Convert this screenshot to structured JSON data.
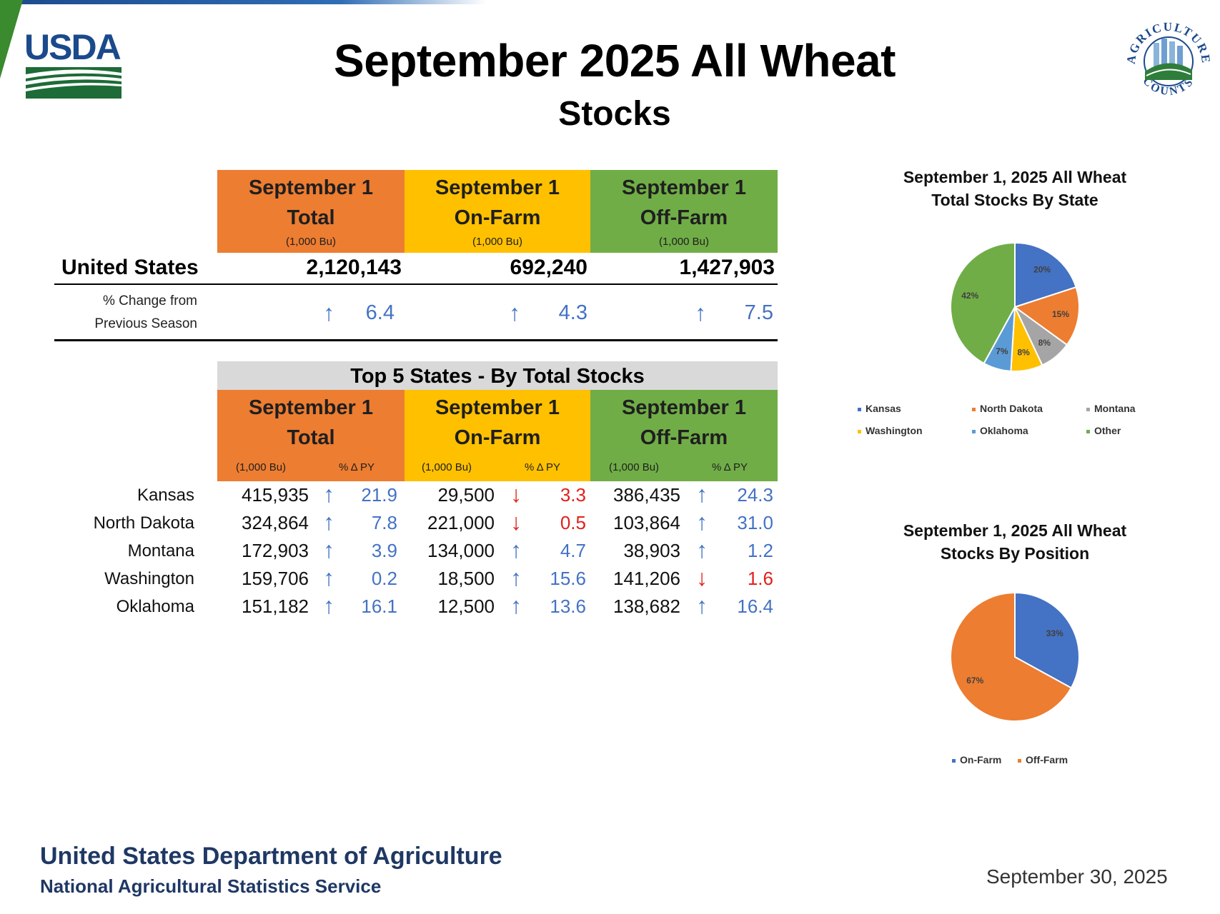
{
  "header": {
    "title": "September 2025 All Wheat",
    "subtitle": "Stocks",
    "logo_text": "USDA",
    "seal_text_top": "AGRICULTURE",
    "seal_text_bottom": "COUNTS"
  },
  "summary": {
    "columns": [
      {
        "line1": "September 1",
        "line2": "Total",
        "unit": "(1,000 Bu)",
        "color": "#ed7d31"
      },
      {
        "line1": "September 1",
        "line2": "On-Farm",
        "unit": "(1,000 Bu)",
        "color": "#ffc000"
      },
      {
        "line1": "September 1",
        "line2": "Off-Farm",
        "unit": "(1,000 Bu)",
        "color": "#70ad47"
      }
    ],
    "us_label": "United States",
    "us_values": [
      "2,120,143",
      "692,240",
      "1,427,903"
    ],
    "change_label_1": "% Change from",
    "change_label_2": "Previous Season",
    "changes": [
      {
        "dir": "up",
        "value": "6.4"
      },
      {
        "dir": "up",
        "value": "4.3"
      },
      {
        "dir": "up",
        "value": "7.5"
      }
    ]
  },
  "top5": {
    "title": "Top 5 States - By Total Stocks",
    "columns": [
      {
        "line1": "September 1",
        "line2": "Total",
        "unit": "(1,000 Bu)",
        "pct": "% Δ PY"
      },
      {
        "line1": "September 1",
        "line2": "On-Farm",
        "unit": "(1,000 Bu)",
        "pct": "% Δ PY"
      },
      {
        "line1": "September 1",
        "line2": "Off-Farm",
        "unit": "(1,000 Bu)",
        "pct": "% Δ PY"
      }
    ],
    "rows": [
      {
        "state": "Kansas",
        "cells": [
          {
            "value": "415,935",
            "dir": "up",
            "pct": "21.9"
          },
          {
            "value": "29,500",
            "dir": "down",
            "pct": "3.3"
          },
          {
            "value": "386,435",
            "dir": "up",
            "pct": "24.3"
          }
        ]
      },
      {
        "state": "North Dakota",
        "cells": [
          {
            "value": "324,864",
            "dir": "up",
            "pct": "7.8"
          },
          {
            "value": "221,000",
            "dir": "down",
            "pct": "0.5"
          },
          {
            "value": "103,864",
            "dir": "up",
            "pct": "31.0"
          }
        ]
      },
      {
        "state": "Montana",
        "cells": [
          {
            "value": "172,903",
            "dir": "up",
            "pct": "3.9"
          },
          {
            "value": "134,000",
            "dir": "up",
            "pct": "4.7"
          },
          {
            "value": "38,903",
            "dir": "up",
            "pct": "1.2"
          }
        ]
      },
      {
        "state": "Washington",
        "cells": [
          {
            "value": "159,706",
            "dir": "up",
            "pct": "0.2"
          },
          {
            "value": "18,500",
            "dir": "up",
            "pct": "15.6"
          },
          {
            "value": "141,206",
            "dir": "down",
            "pct": "1.6"
          }
        ]
      },
      {
        "state": "Oklahoma",
        "cells": [
          {
            "value": "151,182",
            "dir": "up",
            "pct": "16.1"
          },
          {
            "value": "12,500",
            "dir": "up",
            "pct": "13.6"
          },
          {
            "value": "138,682",
            "dir": "up",
            "pct": "16.4"
          }
        ]
      }
    ]
  },
  "chart_data": [
    {
      "type": "pie",
      "title": "September 1, 2025 All Wheat Total Stocks By State",
      "title_line1": "September 1, 2025 All Wheat",
      "title_line2": "Total Stocks By State",
      "legend_placement": "bottom",
      "slices": [
        {
          "label": "Kansas",
          "value": 20,
          "display": "20%",
          "color": "#4472c4"
        },
        {
          "label": "North Dakota",
          "value": 15,
          "display": "15%",
          "color": "#ed7d31"
        },
        {
          "label": "Montana",
          "value": 8,
          "display": "8%",
          "color": "#a5a5a5"
        },
        {
          "label": "Washington",
          "value": 8,
          "display": "8%",
          "color": "#ffc000"
        },
        {
          "label": "Oklahoma",
          "value": 7,
          "display": "7%",
          "color": "#5b9bd5"
        },
        {
          "label": "Other",
          "value": 42,
          "display": "42%",
          "color": "#70ad47"
        }
      ]
    },
    {
      "type": "pie",
      "title": "September 1, 2025 All Wheat Stocks By Position",
      "title_line1": "September 1, 2025 All Wheat",
      "title_line2": "Stocks By Position",
      "legend_placement": "bottom",
      "slices": [
        {
          "label": "On-Farm",
          "value": 33,
          "display": "33%",
          "color": "#4472c4"
        },
        {
          "label": "Off-Farm",
          "value": 67,
          "display": "67%",
          "color": "#ed7d31"
        }
      ]
    }
  ],
  "footer": {
    "dept": "United States Department of Agriculture",
    "agency": "National Agricultural Statistics Service",
    "date": "September 30, 2025"
  },
  "colors": {
    "up_arrow": "#4472c4",
    "down_arrow": "#e0211b",
    "usda_blue": "#1b4a8c",
    "footer_navy": "#1f3864"
  }
}
